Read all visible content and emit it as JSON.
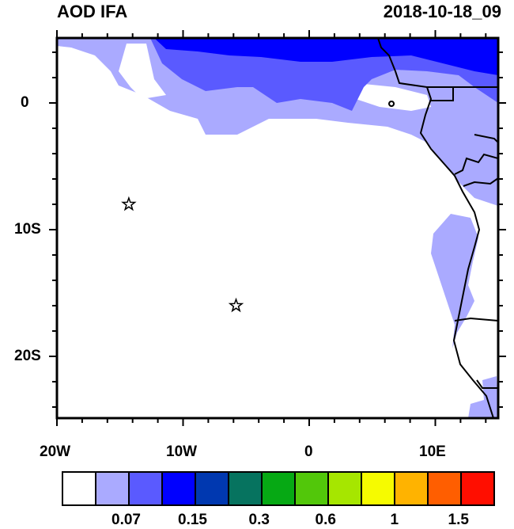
{
  "title_left": "AOD IFA",
  "title_right": "2018-10-18_09",
  "lon_labels": [
    "20W",
    "10W",
    "0",
    "10E"
  ],
  "lat_labels": [
    "0",
    "10S",
    "20S"
  ],
  "markers": [
    {
      "lon": -14.3,
      "lat": -8.0,
      "symbol": "star"
    },
    {
      "lon": -5.8,
      "lat": -16.0,
      "symbol": "star"
    }
  ],
  "colorbar": {
    "colors": [
      "#ffffff",
      "#aaaaff",
      "#5a5aff",
      "#0000ff",
      "#0038b0",
      "#06735f",
      "#06a914",
      "#52c70a",
      "#a6e600",
      "#f6fb00",
      "#ffb300",
      "#ff5e00",
      "#ff0e00"
    ],
    "labels": [
      "0.07",
      "0.15",
      "0.3",
      "0.6",
      "1",
      "1.5"
    ]
  }
}
